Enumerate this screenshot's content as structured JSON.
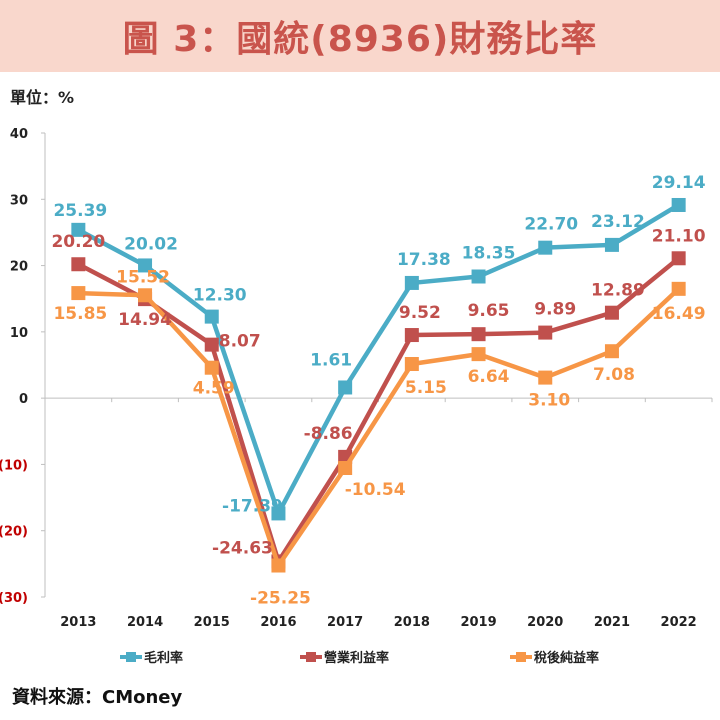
{
  "header": {
    "title": "圖 3：國統(8936)財務比率"
  },
  "unit": "單位：%",
  "source": "資料來源：CMoney",
  "chart_data": {
    "type": "line",
    "title": "圖 3：國統(8936)財務比率",
    "categories": [
      "2013",
      "2014",
      "2015",
      "2016",
      "2017",
      "2018",
      "2019",
      "2020",
      "2021",
      "2022"
    ],
    "ylim": [
      -30,
      40
    ],
    "yticks": [
      40,
      30,
      20,
      10,
      0,
      -10,
      -20,
      -30
    ],
    "ytick_labels": [
      "40",
      "30",
      "20",
      "10",
      "0",
      "(10)",
      "(20)",
      "(30)"
    ],
    "negative_tick_color": "#c00000",
    "grid": false,
    "legend_position": "bottom",
    "series": [
      {
        "name": "毛利率",
        "color": "#4bacc6",
        "values": [
          25.39,
          20.02,
          12.3,
          -17.39,
          1.61,
          17.38,
          18.35,
          22.7,
          23.12,
          29.14
        ],
        "labels": [
          "25.39",
          "20.02",
          "12.30",
          "-17.39",
          "1.61",
          "17.38",
          "18.35",
          "22.70",
          "23.12",
          "29.14"
        ]
      },
      {
        "name": "營業利益率",
        "color": "#c0504d",
        "values": [
          20.2,
          14.94,
          8.07,
          -24.63,
          -8.86,
          9.52,
          9.65,
          9.89,
          12.89,
          21.1
        ],
        "labels": [
          "20.20",
          "14.94",
          "8.07",
          "-24.63",
          "-8.86",
          "9.52",
          "9.65",
          "9.89",
          "12.89",
          "21.10"
        ]
      },
      {
        "name": "稅後純益率",
        "color": "#f79646",
        "values": [
          15.85,
          15.52,
          4.59,
          -25.25,
          -10.54,
          5.15,
          6.64,
          3.1,
          7.08,
          16.49
        ],
        "labels": [
          "15.85",
          "15.52",
          "4.59",
          "-25.25",
          "-10.54",
          "5.15",
          "6.64",
          "3.10",
          "7.08",
          "16.49"
        ]
      }
    ]
  }
}
